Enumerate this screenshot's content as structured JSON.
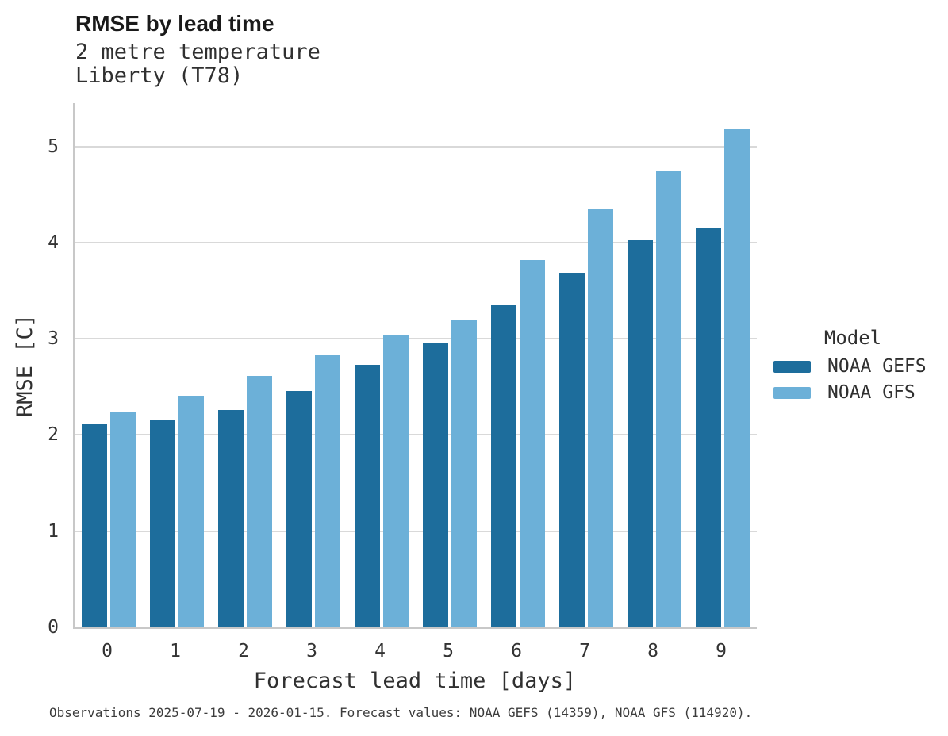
{
  "header": {
    "title": "RMSE by lead time",
    "subtitle_line1": "2 metre temperature",
    "subtitle_line2": "Liberty (T78)"
  },
  "chart_data": {
    "type": "bar",
    "title": "RMSE by lead time",
    "subtitle": [
      "2 metre temperature",
      "Liberty (T78)"
    ],
    "categories": [
      "0",
      "1",
      "2",
      "3",
      "4",
      "5",
      "6",
      "7",
      "8",
      "9"
    ],
    "series": [
      {
        "name": "NOAA GEFS",
        "color": "#1d6d9c",
        "values": [
          2.11,
          2.16,
          2.26,
          2.46,
          2.73,
          2.95,
          3.35,
          3.69,
          4.02,
          4.15
        ]
      },
      {
        "name": "NOAA GFS",
        "color": "#6cb0d8",
        "values": [
          2.24,
          2.41,
          2.61,
          2.83,
          3.04,
          3.19,
          3.82,
          4.35,
          4.75,
          5.18
        ]
      }
    ],
    "xlabel": "Forecast lead time [days]",
    "ylabel": "RMSE [C]",
    "ylim": [
      0,
      5.45
    ],
    "yticks": [
      0,
      1,
      2,
      3,
      4,
      5
    ],
    "grid": true,
    "legend_title": "Model",
    "legend_position": "right-center"
  },
  "legend": {
    "title": "Model",
    "entries": [
      {
        "label": "NOAA GEFS",
        "color": "#1d6d9c"
      },
      {
        "label": "NOAA GFS",
        "color": "#6cb0d8"
      }
    ]
  },
  "footer": {
    "caption": "Observations 2025-07-19 - 2026-01-15. Forecast values: NOAA GEFS (14359), NOAA GFS (114920)."
  }
}
